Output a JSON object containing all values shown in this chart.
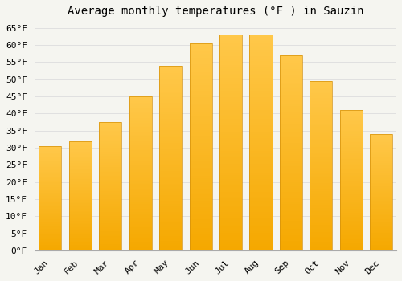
{
  "title": "Average monthly temperatures (°F ) in Sauzin",
  "months": [
    "Jan",
    "Feb",
    "Mar",
    "Apr",
    "May",
    "Jun",
    "Jul",
    "Aug",
    "Sep",
    "Oct",
    "Nov",
    "Dec"
  ],
  "values": [
    30.5,
    32.0,
    37.5,
    45.0,
    54.0,
    60.5,
    63.0,
    63.0,
    57.0,
    49.5,
    41.0,
    34.0
  ],
  "bar_color_top": "#FFC84A",
  "bar_color_bottom": "#F5A800",
  "bar_edge_color": "#D4900A",
  "background_color": "#f5f5f0",
  "grid_color": "#e0e0e0",
  "ylim": [
    0,
    67
  ],
  "yticks": [
    0,
    5,
    10,
    15,
    20,
    25,
    30,
    35,
    40,
    45,
    50,
    55,
    60,
    65
  ],
  "title_fontsize": 10,
  "tick_fontsize": 8,
  "bar_width": 0.75
}
